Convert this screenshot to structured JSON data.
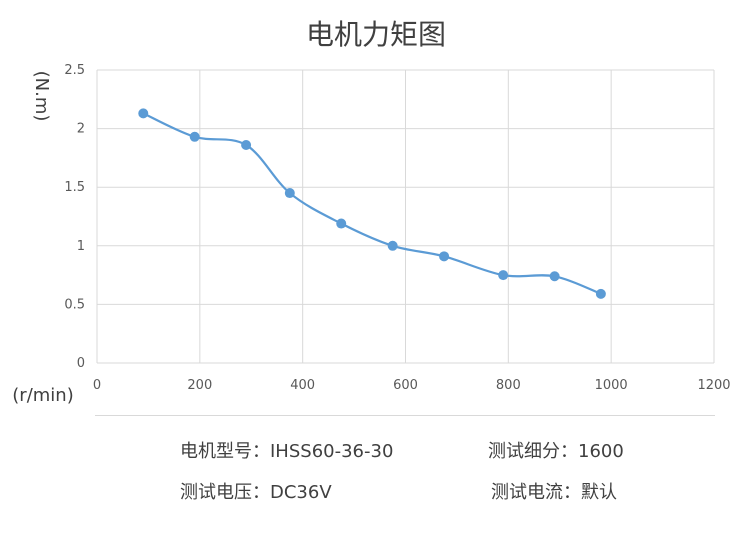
{
  "chart_data": {
    "type": "line",
    "title": "电机力矩图",
    "xlabel": "(r/min)",
    "ylabel": "(N.m)",
    "xlim": [
      0,
      1200
    ],
    "ylim": [
      0,
      2.5
    ],
    "x_ticks": [
      "0",
      "200",
      "400",
      "600",
      "800",
      "1000",
      "1200"
    ],
    "y_ticks": [
      "0",
      "0.5",
      "1",
      "1.5",
      "2",
      "2.5"
    ],
    "grid": true,
    "smooth": true,
    "series": [
      {
        "x": [
          90,
          190,
          290,
          375,
          475,
          575,
          675,
          790,
          890,
          980
        ],
        "y": [
          2.13,
          1.93,
          1.86,
          1.45,
          1.19,
          1.0,
          0.91,
          0.75,
          0.74,
          0.59
        ],
        "color": "#5b9bd5"
      }
    ]
  },
  "info": {
    "model": "电机型号：IHSS60-36-30",
    "subdivision": "测试细分：1600",
    "voltage": "测试电压：DC36V",
    "current": "测试电流：默认"
  }
}
